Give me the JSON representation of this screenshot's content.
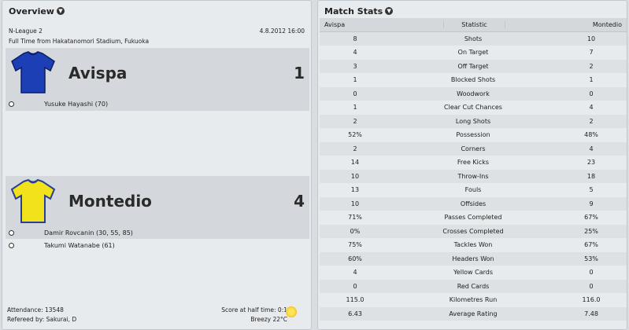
{
  "overview": {
    "title": "Overview",
    "league": "N-League 2",
    "date": "4.8.2012 16:00",
    "venue_line": "Full Time from Hakatanomori Stadium, Fukuoka",
    "home": {
      "name": "Avispa",
      "score": "1",
      "shirt_color": "#1d3fb5",
      "scorers": [
        "Yusuke Hayashi (70)"
      ]
    },
    "away": {
      "name": "Montedio",
      "score": "4",
      "shirt_color": "#f1e21c",
      "scorers": [
        "Damir Rovcanin (30, 55, 85)",
        "Takumi Watanabe (61)"
      ]
    },
    "attendance": "Attendance: 13548",
    "referee": "Refereed by: Sakurai, D",
    "halftime": "Score at half time: 0:1",
    "weather": "Breezy 22°C",
    "weather_icon": "sun-icon"
  },
  "stats": {
    "title": "Match Stats",
    "headers": {
      "home": "Avispa",
      "stat": "Statistic",
      "away": "Montedio"
    },
    "rows": [
      {
        "home": "8",
        "stat": "Shots",
        "away": "10"
      },
      {
        "home": "4",
        "stat": "On Target",
        "away": "7"
      },
      {
        "home": "3",
        "stat": "Off Target",
        "away": "2"
      },
      {
        "home": "1",
        "stat": "Blocked Shots",
        "away": "1"
      },
      {
        "home": "0",
        "stat": "Woodwork",
        "away": "0"
      },
      {
        "home": "1",
        "stat": "Clear Cut Chances",
        "away": "4"
      },
      {
        "home": "2",
        "stat": "Long Shots",
        "away": "2"
      },
      {
        "home": "52%",
        "stat": "Possession",
        "away": "48%"
      },
      {
        "home": "2",
        "stat": "Corners",
        "away": "4"
      },
      {
        "home": "14",
        "stat": "Free Kicks",
        "away": "23"
      },
      {
        "home": "10",
        "stat": "Throw-Ins",
        "away": "18"
      },
      {
        "home": "13",
        "stat": "Fouls",
        "away": "5"
      },
      {
        "home": "10",
        "stat": "Offsides",
        "away": "9"
      },
      {
        "home": "71%",
        "stat": "Passes Completed",
        "away": "67%"
      },
      {
        "home": "0%",
        "stat": "Crosses Completed",
        "away": "25%"
      },
      {
        "home": "75%",
        "stat": "Tackles Won",
        "away": "67%"
      },
      {
        "home": "60%",
        "stat": "Headers Won",
        "away": "53%"
      },
      {
        "home": "4",
        "stat": "Yellow Cards",
        "away": "0"
      },
      {
        "home": "0",
        "stat": "Red Cards",
        "away": "0"
      },
      {
        "home": "115.0",
        "stat": "Kilometres Run",
        "away": "116.0"
      },
      {
        "home": "6.43",
        "stat": "Average Rating",
        "away": "7.48"
      }
    ]
  }
}
